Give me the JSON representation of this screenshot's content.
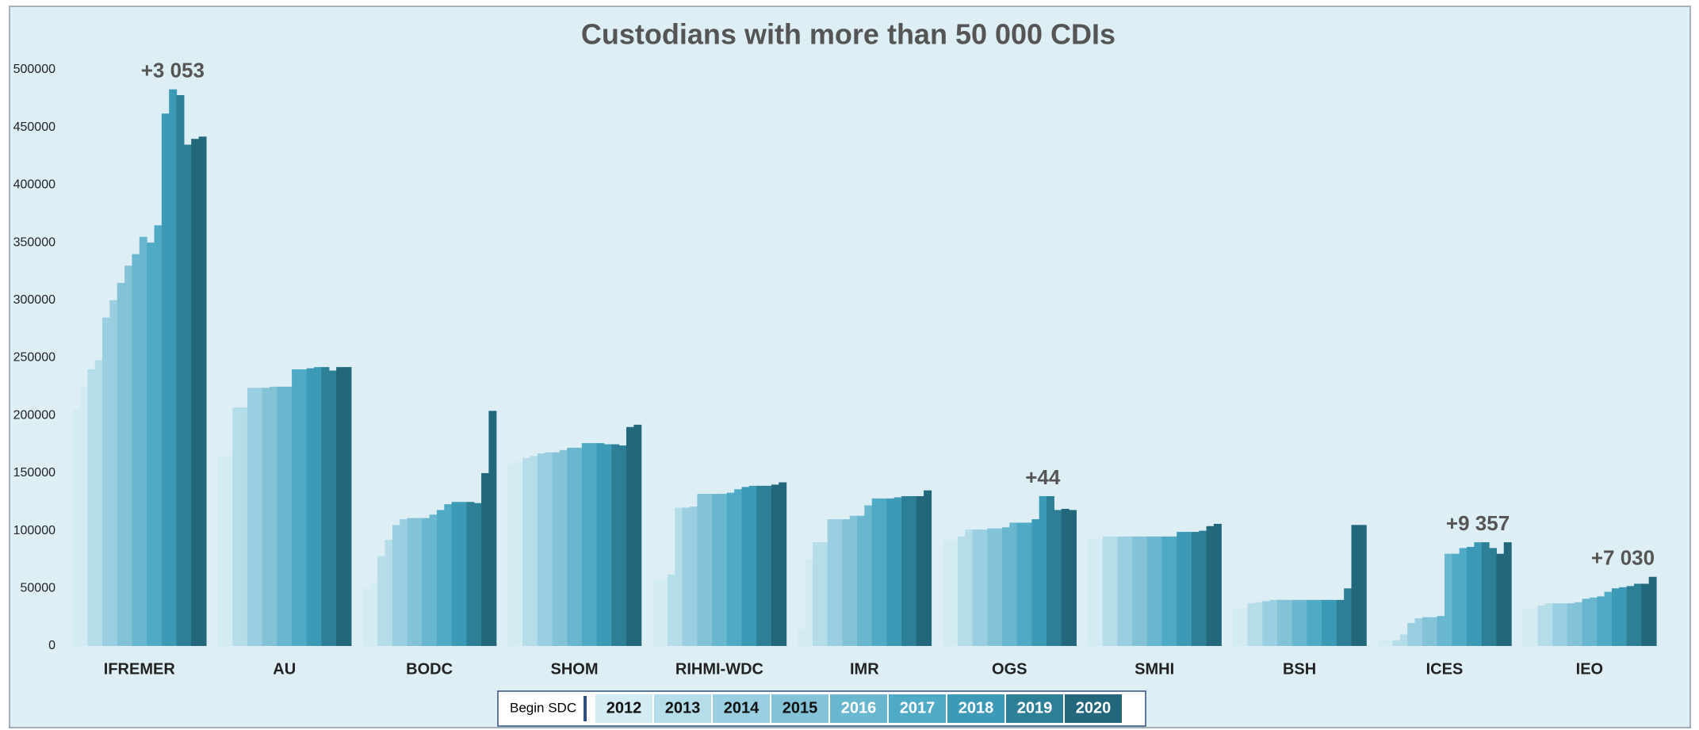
{
  "chart_data": {
    "type": "bar",
    "title": "Custodians with more than 50 000 CDIs",
    "categories": [
      "IFREMER",
      "AU",
      "BODC",
      "SHOM",
      "RIHMI-WDC",
      "IMR",
      "OGS",
      "SMHI",
      "BSH",
      "ICES",
      "IEO"
    ],
    "ylim": [
      0,
      500000
    ],
    "yticks": [
      0,
      50000,
      100000,
      150000,
      200000,
      250000,
      300000,
      350000,
      400000,
      450000,
      500000
    ],
    "legend_marker_label": "Begin SDC",
    "legend_marker_color": "#2f4f7f",
    "series": [
      {
        "name": "2012",
        "color": "#d3ebf2",
        "values": [
          [
            205000,
            225000
          ],
          [
            165000,
            165000
          ],
          [
            50000,
            55000
          ],
          [
            158000,
            160000
          ],
          [
            58000,
            58000
          ],
          [
            15000,
            75000
          ],
          [
            92000,
            92000
          ],
          [
            93000,
            93000
          ],
          [
            32000,
            33000
          ],
          [
            5000,
            5000
          ],
          [
            32000,
            33000
          ]
        ]
      },
      {
        "name": "2013",
        "color": "#b4dde9",
        "values": [
          [
            240000,
            248000
          ],
          [
            207000,
            207000
          ],
          [
            78000,
            92000
          ],
          [
            163000,
            165000
          ],
          [
            62000,
            120000
          ],
          [
            90000,
            90000
          ],
          [
            95000,
            101000
          ],
          [
            95000,
            95000
          ],
          [
            37000,
            38000
          ],
          [
            5000,
            10000
          ],
          [
            35000,
            37000
          ]
        ]
      },
      {
        "name": "2014",
        "color": "#99cfe0",
        "values": [
          [
            285000,
            300000
          ],
          [
            224000,
            224000
          ],
          [
            105000,
            110000
          ],
          [
            167000,
            168000
          ],
          [
            120000,
            121000
          ],
          [
            110000,
            110000
          ],
          [
            101000,
            101000
          ],
          [
            95000,
            95000
          ],
          [
            39000,
            40000
          ],
          [
            20000,
            24000
          ],
          [
            37000,
            37000
          ]
        ]
      },
      {
        "name": "2015",
        "color": "#84c3d7",
        "values": [
          [
            315000,
            330000
          ],
          [
            224000,
            225000
          ],
          [
            111000,
            111000
          ],
          [
            168000,
            170000
          ],
          [
            132000,
            132000
          ],
          [
            110000,
            113000
          ],
          [
            102000,
            102000
          ],
          [
            95000,
            95000
          ],
          [
            40000,
            40000
          ],
          [
            25000,
            25000
          ],
          [
            37000,
            38000
          ]
        ]
      },
      {
        "name": "2016",
        "color": "#69b7cf",
        "values": [
          [
            340000,
            355000
          ],
          [
            225000,
            225000
          ],
          [
            111000,
            114000
          ],
          [
            172000,
            172000
          ],
          [
            132000,
            132000
          ],
          [
            113000,
            122000
          ],
          [
            103000,
            107000
          ],
          [
            95000,
            95000
          ],
          [
            40000,
            40000
          ],
          [
            26000,
            80000
          ],
          [
            41000,
            42000
          ]
        ]
      },
      {
        "name": "2017",
        "color": "#4faac6",
        "values": [
          [
            350000,
            365000
          ],
          [
            240000,
            240000
          ],
          [
            118000,
            123000
          ],
          [
            176000,
            176000
          ],
          [
            133000,
            136000
          ],
          [
            128000,
            128000
          ],
          [
            107000,
            107000
          ],
          [
            95000,
            95000
          ],
          [
            40000,
            40000
          ],
          [
            80000,
            85000
          ],
          [
            43000,
            47000
          ]
        ]
      },
      {
        "name": "2018",
        "color": "#3c9ab6",
        "values": [
          [
            462000,
            483000
          ],
          [
            241000,
            242000
          ],
          [
            125000,
            125000
          ],
          [
            176000,
            175000
          ],
          [
            138000,
            139000
          ],
          [
            128000,
            129000
          ],
          [
            110000,
            130000
          ],
          [
            99000,
            99000
          ],
          [
            40000,
            40000
          ],
          [
            86000,
            90000
          ],
          [
            50000,
            51000
          ]
        ]
      },
      {
        "name": "2019",
        "color": "#2c7f95",
        "values": [
          [
            478000,
            435000
          ],
          [
            242000,
            239000
          ],
          [
            125000,
            124000
          ],
          [
            175000,
            174000
          ],
          [
            139000,
            139000
          ],
          [
            130000,
            130000
          ],
          [
            130000,
            118000
          ],
          [
            99000,
            100000
          ],
          [
            40000,
            50000
          ],
          [
            90000,
            85000
          ],
          [
            52000,
            54000
          ]
        ]
      },
      {
        "name": "2020",
        "color": "#22677b",
        "values": [
          [
            440000,
            442000
          ],
          [
            242000,
            242000
          ],
          [
            150000,
            204000
          ],
          [
            190000,
            192000
          ],
          [
            140000,
            142000
          ],
          [
            130000,
            135000
          ],
          [
            119000,
            118000
          ],
          [
            104000,
            106000
          ],
          [
            105000,
            105000
          ],
          [
            80000,
            90000
          ],
          [
            54000,
            60000
          ]
        ]
      }
    ],
    "annotations": [
      {
        "text": "+3 053",
        "category": "IFREMER"
      },
      {
        "text": "+44",
        "category": "OGS"
      },
      {
        "text": "+9 357",
        "category": "ICES"
      },
      {
        "text": "+7 030",
        "category": "IEO"
      }
    ]
  }
}
